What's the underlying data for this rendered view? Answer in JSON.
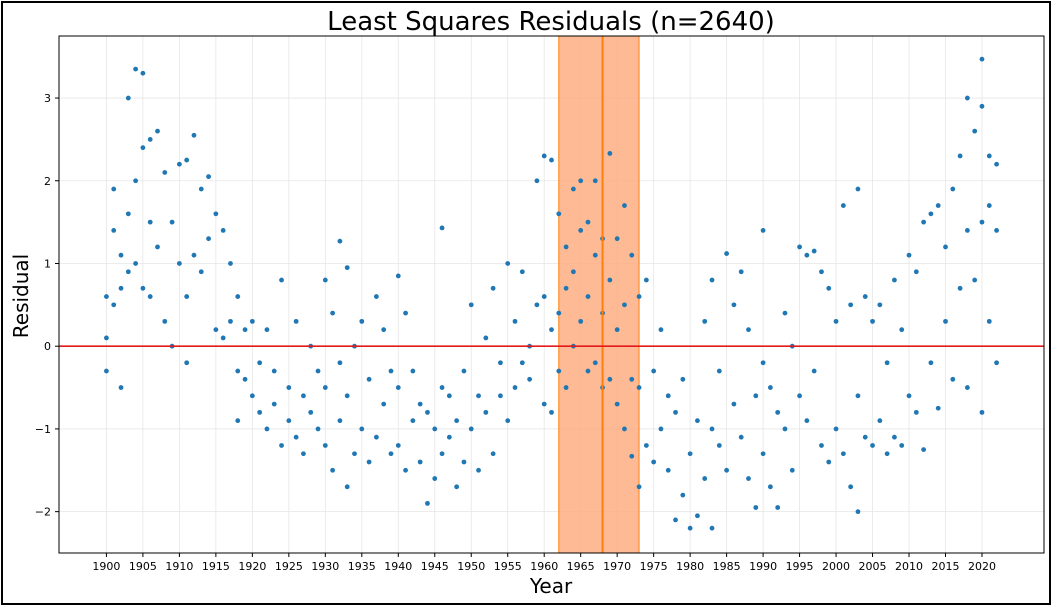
{
  "chart_data": {
    "type": "scatter",
    "title": "Least Squares Residuals (n=2640)",
    "xlabel": "Year",
    "ylabel": "Residual",
    "xlim": [
      1893.5,
      2028.5
    ],
    "ylim": [
      -2.5,
      3.75
    ],
    "x_ticks": [
      1900,
      1905,
      1910,
      1915,
      1920,
      1925,
      1930,
      1935,
      1940,
      1945,
      1950,
      1955,
      1960,
      1965,
      1970,
      1975,
      1980,
      1985,
      1990,
      1995,
      2000,
      2005,
      2010,
      2015,
      2020
    ],
    "y_ticks": [
      -2,
      -1,
      0,
      1,
      2,
      3
    ],
    "grid": true,
    "reference_line": {
      "y": 0,
      "color": "#e31a1c"
    },
    "highlight_regions": [
      {
        "x_start": 1962,
        "x_end": 1968,
        "color": "#fdae82"
      },
      {
        "x_start": 1968,
        "x_end": 1973,
        "color": "#fdae82"
      }
    ],
    "highlight_divider": {
      "x": 1968,
      "color": "#ff7f0e"
    },
    "point_color": "#1f77b4",
    "series": [
      {
        "points": [
          [
            1900,
            0.6
          ],
          [
            1900,
            -0.3
          ],
          [
            1900,
            0.1
          ],
          [
            1901,
            1.9
          ],
          [
            1901,
            1.4
          ],
          [
            1901,
            0.5
          ],
          [
            1902,
            -0.5
          ],
          [
            1902,
            1.1
          ],
          [
            1902,
            0.7
          ],
          [
            1903,
            3.0
          ],
          [
            1903,
            1.6
          ],
          [
            1903,
            0.9
          ],
          [
            1904,
            3.35
          ],
          [
            1904,
            2.0
          ],
          [
            1904,
            1.0
          ],
          [
            1905,
            3.3
          ],
          [
            1905,
            2.4
          ],
          [
            1905,
            0.7
          ],
          [
            1906,
            2.5
          ],
          [
            1906,
            1.5
          ],
          [
            1906,
            0.6
          ],
          [
            1907,
            2.6
          ],
          [
            1907,
            1.2
          ],
          [
            1908,
            2.1
          ],
          [
            1908,
            0.3
          ],
          [
            1909,
            1.5
          ],
          [
            1909,
            0.0
          ],
          [
            1910,
            2.2
          ],
          [
            1910,
            1.0
          ],
          [
            1911,
            2.25
          ],
          [
            1911,
            -0.2
          ],
          [
            1911,
            0.6
          ],
          [
            1912,
            2.55
          ],
          [
            1912,
            1.1
          ],
          [
            1913,
            1.9
          ],
          [
            1913,
            0.9
          ],
          [
            1914,
            2.05
          ],
          [
            1914,
            1.3
          ],
          [
            1915,
            1.6
          ],
          [
            1915,
            0.2
          ],
          [
            1916,
            1.4
          ],
          [
            1916,
            0.1
          ],
          [
            1917,
            1.0
          ],
          [
            1917,
            0.3
          ],
          [
            1918,
            -0.9
          ],
          [
            1918,
            0.6
          ],
          [
            1918,
            -0.3
          ],
          [
            1919,
            -0.4
          ],
          [
            1919,
            0.2
          ],
          [
            1920,
            -0.6
          ],
          [
            1920,
            0.3
          ],
          [
            1921,
            -0.8
          ],
          [
            1921,
            -0.2
          ],
          [
            1922,
            -1.0
          ],
          [
            1922,
            0.2
          ],
          [
            1923,
            -0.7
          ],
          [
            1923,
            -0.3
          ],
          [
            1924,
            0.8
          ],
          [
            1924,
            -1.2
          ],
          [
            1925,
            -0.9
          ],
          [
            1925,
            -0.5
          ],
          [
            1926,
            -1.1
          ],
          [
            1926,
            0.3
          ],
          [
            1927,
            -0.6
          ],
          [
            1927,
            -1.3
          ],
          [
            1928,
            -0.8
          ],
          [
            1928,
            0.0
          ],
          [
            1929,
            -1.0
          ],
          [
            1929,
            -0.3
          ],
          [
            1930,
            0.8
          ],
          [
            1930,
            -1.2
          ],
          [
            1930,
            -0.5
          ],
          [
            1931,
            -1.5
          ],
          [
            1931,
            0.4
          ],
          [
            1932,
            1.27
          ],
          [
            1932,
            -0.9
          ],
          [
            1932,
            -0.2
          ],
          [
            1933,
            -1.7
          ],
          [
            1933,
            0.95
          ],
          [
            1933,
            -0.6
          ],
          [
            1934,
            -1.3
          ],
          [
            1934,
            0.0
          ],
          [
            1935,
            -1.0
          ],
          [
            1935,
            0.3
          ],
          [
            1936,
            -1.4
          ],
          [
            1936,
            -0.4
          ],
          [
            1937,
            0.6
          ],
          [
            1937,
            -1.1
          ],
          [
            1938,
            -0.7
          ],
          [
            1938,
            0.2
          ],
          [
            1939,
            -1.3
          ],
          [
            1939,
            -0.3
          ],
          [
            1940,
            0.85
          ],
          [
            1940,
            -1.2
          ],
          [
            1940,
            -0.5
          ],
          [
            1941,
            -1.5
          ],
          [
            1941,
            0.4
          ],
          [
            1942,
            -0.9
          ],
          [
            1942,
            -0.3
          ],
          [
            1943,
            -1.4
          ],
          [
            1943,
            -0.7
          ],
          [
            1944,
            -1.9
          ],
          [
            1944,
            -0.8
          ],
          [
            1945,
            -1.6
          ],
          [
            1945,
            -1.0
          ],
          [
            1946,
            1.43
          ],
          [
            1946,
            -1.3
          ],
          [
            1946,
            -0.5
          ],
          [
            1947,
            -1.1
          ],
          [
            1947,
            -0.6
          ],
          [
            1948,
            -1.7
          ],
          [
            1948,
            -0.9
          ],
          [
            1949,
            -1.4
          ],
          [
            1949,
            -0.3
          ],
          [
            1950,
            -1.0
          ],
          [
            1950,
            0.5
          ],
          [
            1951,
            -1.5
          ],
          [
            1951,
            -0.6
          ],
          [
            1952,
            -0.8
          ],
          [
            1952,
            0.1
          ],
          [
            1953,
            -1.3
          ],
          [
            1953,
            0.7
          ],
          [
            1954,
            -0.6
          ],
          [
            1954,
            -0.2
          ],
          [
            1955,
            -0.9
          ],
          [
            1955,
            1.0
          ],
          [
            1956,
            -0.5
          ],
          [
            1956,
            0.3
          ],
          [
            1957,
            -0.2
          ],
          [
            1957,
            0.9
          ],
          [
            1958,
            0.0
          ],
          [
            1958,
            -0.4
          ],
          [
            1959,
            2.0
          ],
          [
            1959,
            0.5
          ],
          [
            1960,
            2.3
          ],
          [
            1960,
            -0.7
          ],
          [
            1960,
            0.6
          ],
          [
            1961,
            2.25
          ],
          [
            1961,
            -0.8
          ],
          [
            1961,
            0.2
          ],
          [
            1962,
            1.6
          ],
          [
            1962,
            0.4
          ],
          [
            1962,
            -0.3
          ],
          [
            1963,
            1.2
          ],
          [
            1963,
            0.7
          ],
          [
            1963,
            -0.5
          ],
          [
            1964,
            1.9
          ],
          [
            1964,
            0.9
          ],
          [
            1964,
            0.0
          ],
          [
            1965,
            2.0
          ],
          [
            1965,
            1.4
          ],
          [
            1965,
            0.3
          ],
          [
            1966,
            1.5
          ],
          [
            1966,
            0.6
          ],
          [
            1966,
            -0.3
          ],
          [
            1967,
            2.0
          ],
          [
            1967,
            1.1
          ],
          [
            1967,
            -0.2
          ],
          [
            1968,
            1.3
          ],
          [
            1968,
            0.4
          ],
          [
            1968,
            -0.5
          ],
          [
            1969,
            2.33
          ],
          [
            1969,
            0.8
          ],
          [
            1969,
            -0.4
          ],
          [
            1970,
            1.3
          ],
          [
            1970,
            0.2
          ],
          [
            1970,
            -0.7
          ],
          [
            1971,
            1.7
          ],
          [
            1971,
            0.5
          ],
          [
            1971,
            -1.0
          ],
          [
            1972,
            1.1
          ],
          [
            1972,
            -0.4
          ],
          [
            1972,
            -1.33
          ],
          [
            1973,
            -1.7
          ],
          [
            1973,
            0.6
          ],
          [
            1973,
            -0.5
          ],
          [
            1974,
            -1.2
          ],
          [
            1974,
            0.8
          ],
          [
            1975,
            -1.4
          ],
          [
            1975,
            -0.3
          ],
          [
            1976,
            -1.0
          ],
          [
            1976,
            0.2
          ],
          [
            1977,
            -1.5
          ],
          [
            1977,
            -0.6
          ],
          [
            1978,
            -2.1
          ],
          [
            1978,
            -0.8
          ],
          [
            1979,
            -1.8
          ],
          [
            1979,
            -0.4
          ],
          [
            1980,
            -2.2
          ],
          [
            1980,
            -1.3
          ],
          [
            1981,
            -2.05
          ],
          [
            1981,
            -0.9
          ],
          [
            1982,
            -1.6
          ],
          [
            1982,
            0.3
          ],
          [
            1983,
            -2.2
          ],
          [
            1983,
            -1.0
          ],
          [
            1983,
            0.8
          ],
          [
            1984,
            -1.2
          ],
          [
            1984,
            -0.3
          ],
          [
            1985,
            -1.5
          ],
          [
            1985,
            1.12
          ],
          [
            1986,
            -0.7
          ],
          [
            1986,
            0.5
          ],
          [
            1987,
            -1.1
          ],
          [
            1987,
            0.9
          ],
          [
            1988,
            -1.6
          ],
          [
            1988,
            0.2
          ],
          [
            1989,
            -1.95
          ],
          [
            1989,
            -0.6
          ],
          [
            1990,
            1.4
          ],
          [
            1990,
            -1.3
          ],
          [
            1990,
            -0.2
          ],
          [
            1991,
            -1.7
          ],
          [
            1991,
            -0.5
          ],
          [
            1992,
            -1.95
          ],
          [
            1992,
            -0.8
          ],
          [
            1993,
            -1.0
          ],
          [
            1993,
            0.4
          ],
          [
            1994,
            -1.5
          ],
          [
            1994,
            0.0
          ],
          [
            1995,
            1.2
          ],
          [
            1995,
            -0.6
          ],
          [
            1996,
            1.1
          ],
          [
            1996,
            -0.9
          ],
          [
            1997,
            1.15
          ],
          [
            1997,
            -0.3
          ],
          [
            1998,
            0.9
          ],
          [
            1998,
            -1.2
          ],
          [
            1999,
            0.7
          ],
          [
            1999,
            -1.4
          ],
          [
            2000,
            0.3
          ],
          [
            2000,
            -1.0
          ],
          [
            2001,
            1.7
          ],
          [
            2001,
            -1.3
          ],
          [
            2002,
            -1.7
          ],
          [
            2002,
            0.5
          ],
          [
            2003,
            -2.0
          ],
          [
            2003,
            1.9
          ],
          [
            2003,
            -0.6
          ],
          [
            2004,
            -1.1
          ],
          [
            2004,
            0.6
          ],
          [
            2005,
            -1.2
          ],
          [
            2005,
            0.3
          ],
          [
            2006,
            -0.9
          ],
          [
            2006,
            0.5
          ],
          [
            2007,
            -1.3
          ],
          [
            2007,
            -0.2
          ],
          [
            2008,
            0.8
          ],
          [
            2008,
            -1.1
          ],
          [
            2009,
            -1.2
          ],
          [
            2009,
            0.2
          ],
          [
            2010,
            1.1
          ],
          [
            2010,
            -0.6
          ],
          [
            2011,
            0.9
          ],
          [
            2011,
            -0.8
          ],
          [
            2012,
            1.5
          ],
          [
            2012,
            -1.25
          ],
          [
            2013,
            1.6
          ],
          [
            2013,
            -0.2
          ],
          [
            2014,
            1.7
          ],
          [
            2014,
            -0.75
          ],
          [
            2015,
            1.2
          ],
          [
            2015,
            0.3
          ],
          [
            2016,
            1.9
          ],
          [
            2016,
            -0.4
          ],
          [
            2017,
            2.3
          ],
          [
            2017,
            0.7
          ],
          [
            2018,
            3.0
          ],
          [
            2018,
            1.4
          ],
          [
            2018,
            -0.5
          ],
          [
            2019,
            2.6
          ],
          [
            2019,
            0.8
          ],
          [
            2020,
            3.47
          ],
          [
            2020,
            2.9
          ],
          [
            2020,
            -0.8
          ],
          [
            2020,
            1.5
          ],
          [
            2021,
            2.3
          ],
          [
            2021,
            0.3
          ],
          [
            2021,
            1.7
          ],
          [
            2022,
            1.4
          ],
          [
            2022,
            -0.2
          ],
          [
            2022,
            2.2
          ]
        ]
      }
    ]
  }
}
